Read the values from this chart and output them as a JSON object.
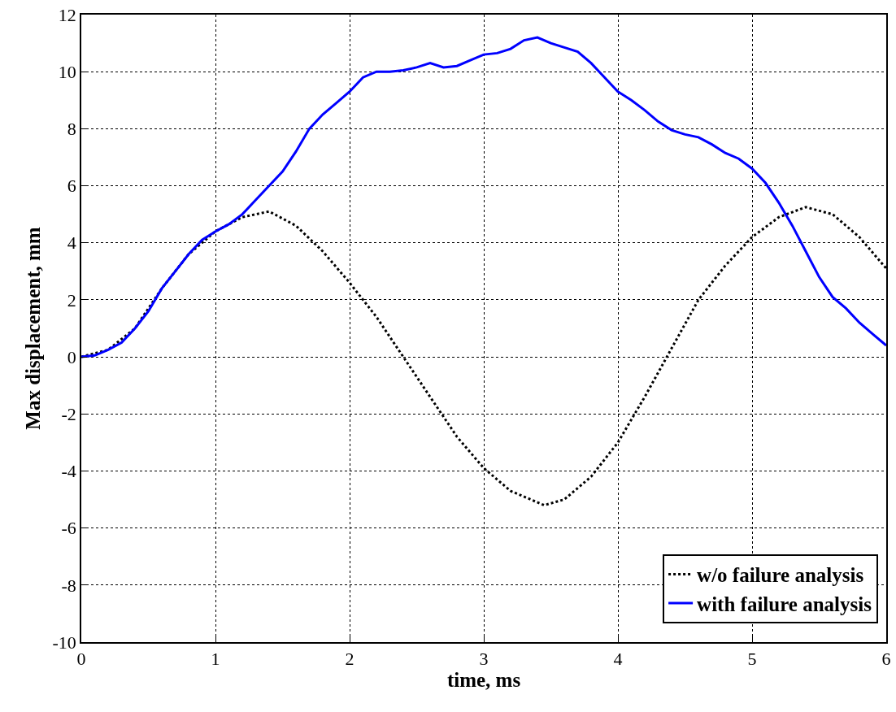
{
  "chart_data": {
    "type": "line",
    "xlabel": "time, ms",
    "ylabel": "Max displacement, mm",
    "xlim": [
      0,
      6
    ],
    "xticks": [
      0,
      1,
      2,
      3,
      4,
      5,
      6
    ],
    "ylim": [
      -10,
      12
    ],
    "yticks": [
      -10,
      -8,
      -6,
      -4,
      -2,
      0,
      2,
      4,
      6,
      8,
      10,
      12
    ],
    "grid": true,
    "legend": "bottom right",
    "marker": "none",
    "series": [
      {
        "name": "w/o failure analysis",
        "color": "#000000",
        "line_style": "dotted",
        "x": [
          0,
          0.2,
          0.4,
          0.6,
          0.8,
          1.0,
          1.2,
          1.4,
          1.6,
          1.8,
          2.0,
          2.2,
          2.4,
          2.6,
          2.8,
          3.0,
          3.2,
          3.45,
          3.6,
          3.8,
          4.0,
          4.2,
          4.4,
          4.6,
          4.8,
          5.0,
          5.2,
          5.4,
          5.6,
          5.8,
          6.0
        ],
        "values": [
          0,
          0.25,
          1.0,
          2.4,
          3.6,
          4.4,
          4.9,
          5.1,
          4.6,
          3.7,
          2.6,
          1.4,
          0.0,
          -1.4,
          -2.8,
          -3.9,
          -4.7,
          -5.2,
          -5.0,
          -4.2,
          -3.0,
          -1.4,
          0.3,
          2.0,
          3.2,
          4.2,
          4.9,
          5.25,
          5.0,
          4.2,
          3.1
        ]
      },
      {
        "name": "with failure analysis",
        "color": "#0000ff",
        "line_style": "solid",
        "x": [
          0,
          0.1,
          0.2,
          0.3,
          0.4,
          0.5,
          0.6,
          0.7,
          0.8,
          0.9,
          1.0,
          1.1,
          1.2,
          1.3,
          1.4,
          1.5,
          1.6,
          1.7,
          1.8,
          1.9,
          2.0,
          2.1,
          2.2,
          2.3,
          2.4,
          2.5,
          2.6,
          2.7,
          2.8,
          2.9,
          3.0,
          3.1,
          3.2,
          3.3,
          3.4,
          3.5,
          3.6,
          3.7,
          3.8,
          3.9,
          4.0,
          4.1,
          4.2,
          4.3,
          4.4,
          4.5,
          4.6,
          4.7,
          4.8,
          4.9,
          5.0,
          5.1,
          5.2,
          5.3,
          5.4,
          5.5,
          5.6,
          5.7,
          5.8,
          5.9,
          6.0
        ],
        "values": [
          0,
          0.05,
          0.25,
          0.5,
          1.0,
          1.6,
          2.4,
          3.0,
          3.6,
          4.1,
          4.4,
          4.65,
          5.0,
          5.5,
          6.0,
          6.5,
          7.2,
          8.0,
          8.5,
          8.9,
          9.3,
          9.8,
          10.0,
          10.0,
          10.05,
          10.15,
          10.3,
          10.15,
          10.2,
          10.4,
          10.6,
          10.65,
          10.8,
          11.1,
          11.2,
          11.0,
          10.85,
          10.7,
          10.3,
          9.8,
          9.3,
          9.0,
          8.65,
          8.25,
          7.95,
          7.8,
          7.7,
          7.45,
          7.15,
          6.95,
          6.6,
          6.1,
          5.4,
          4.6,
          3.7,
          2.8,
          2.1,
          1.7,
          1.2,
          0.8,
          0.4
        ]
      }
    ]
  }
}
